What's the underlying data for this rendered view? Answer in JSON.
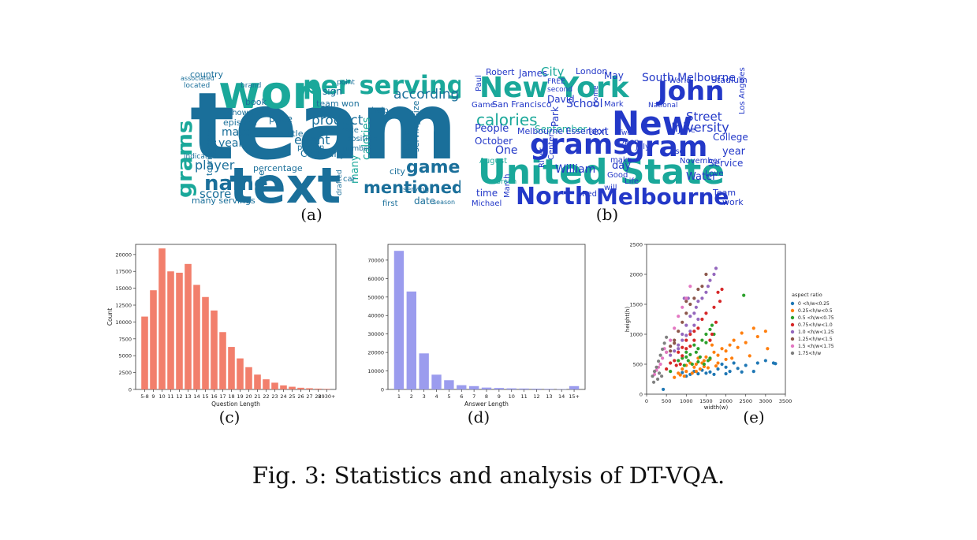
{
  "caption": "Fig. 3: Statistics and analysis of DT-VQA.",
  "sublabels": {
    "a": "(a)",
    "b": "(b)",
    "c": "(c)",
    "d": "(d)",
    "e": "(e)"
  },
  "colors": {
    "cloud_dark": "#1a6f9a",
    "cloud_teal": "#1aa89a",
    "cloud_green": "#2ec08a",
    "cloud_blue": "#2338c8",
    "bar_c": "#f27f6c",
    "bar_d": "#9b9cee"
  },
  "wordcloud_a": {
    "words": [
      "team",
      "text",
      "won",
      "per serving",
      "grams",
      "name",
      "game",
      "mentioned",
      "player",
      "match",
      "year",
      "product",
      "event",
      "score",
      "Company",
      "many",
      "calories",
      "serving size",
      "according",
      "city",
      "percentage",
      "time",
      "type",
      "date",
      "first",
      "price",
      "country",
      "sign",
      "episode",
      "book",
      "title",
      "team won",
      "point",
      "many servings",
      "tournament",
      "located",
      "position",
      "car",
      "season",
      "person",
      "race",
      "number",
      "help",
      "shown",
      "indicated",
      "brand",
      "drafted",
      "serving",
      "result",
      "associated"
    ]
  },
  "wordcloud_b": {
    "words": [
      "New York",
      "John",
      "New",
      "United State",
      "grams",
      "gram",
      "calories",
      "North",
      "Melbourne",
      "University",
      "Street",
      "South Melbourne",
      "People",
      "One",
      "William",
      "October",
      "September",
      "College",
      "year",
      "Service",
      "City",
      "London",
      "May",
      "School",
      "San Francisco",
      "David",
      "text",
      "time",
      "day",
      "Water",
      "Team",
      "work",
      "Robert",
      "James",
      "Stadium",
      "World",
      "Life",
      "Good",
      "Red",
      "Michael",
      "March",
      "August",
      "November",
      "July",
      "June",
      "Park",
      "Melbourne Essendon",
      "make",
      "Open",
      "Mark",
      "Love",
      "will",
      "use",
      "National",
      "Green",
      "second",
      "Center",
      "River",
      "Home",
      "Los Angeles",
      "Paul",
      "Game",
      "FREE",
      "Two"
    ]
  },
  "chart_data": [
    {
      "type": "bar",
      "categories": [
        "5-8",
        "9",
        "10",
        "11",
        "12",
        "13",
        "14",
        "15",
        "16",
        "17",
        "18",
        "19",
        "20",
        "21",
        "22",
        "23",
        "24",
        "25",
        "26",
        "27",
        "28",
        "2930+"
      ],
      "values": [
        10800,
        14700,
        20900,
        17500,
        17300,
        18600,
        15500,
        13700,
        11700,
        8500,
        6300,
        4600,
        3300,
        2200,
        1500,
        1000,
        600,
        400,
        250,
        180,
        120,
        80
      ],
      "xlabel": "Question Length",
      "ylabel": "Count",
      "ylim": [
        0,
        21500
      ],
      "yticks": [
        0,
        2500,
        5000,
        7500,
        10000,
        12500,
        15000,
        17500,
        20000
      ],
      "color": "#f27f6c"
    },
    {
      "type": "bar",
      "categories": [
        "1",
        "2",
        "3",
        "4",
        "5",
        "6",
        "7",
        "8",
        "9",
        "10",
        "11",
        "12",
        "13",
        "14",
        "15+"
      ],
      "values": [
        75000,
        53000,
        19500,
        8000,
        5000,
        2300,
        1800,
        1000,
        800,
        600,
        500,
        400,
        300,
        200,
        1800
      ],
      "xlabel": "Answer Length",
      "ylabel": "",
      "ylim": [
        0,
        78500
      ],
      "yticks": [
        0,
        10000,
        20000,
        30000,
        40000,
        50000,
        60000,
        70000
      ],
      "color": "#9b9cee"
    },
    {
      "type": "scatter",
      "xlabel": "width(w)",
      "ylabel": "height(h)",
      "xlim": [
        0,
        3500
      ],
      "ylim": [
        0,
        2500
      ],
      "xticks": [
        0,
        500,
        1000,
        1500,
        2000,
        2500,
        3000,
        3500
      ],
      "yticks": [
        0,
        500,
        1000,
        1500,
        2000,
        2500
      ],
      "legend_title": "aspect ratio",
      "legend_placement": "right",
      "series": [
        {
          "name": "0   <h/w<0.25",
          "color": "#1f77b4",
          "points": [
            [
              900,
              360
            ],
            [
              1200,
              380
            ],
            [
              1400,
              400
            ],
            [
              1600,
              370
            ],
            [
              1800,
              420
            ],
            [
              2000,
              450
            ],
            [
              2100,
              380
            ],
            [
              2300,
              430
            ],
            [
              2500,
              480
            ],
            [
              2800,
              520
            ],
            [
              3000,
              560
            ],
            [
              3200,
              520
            ],
            [
              3250,
              510
            ],
            [
              2700,
              380
            ],
            [
              2000,
              340
            ],
            [
              1500,
              350
            ],
            [
              1300,
              340
            ],
            [
              1700,
              330
            ],
            [
              2200,
              520
            ],
            [
              1900,
              500
            ],
            [
              2400,
              370
            ],
            [
              1100,
              330
            ],
            [
              1000,
              300
            ],
            [
              420,
              80
            ]
          ]
        },
        {
          "name": "0.25<h/w<0.5",
          "color": "#ff7f0e",
          "points": [
            [
              700,
              280
            ],
            [
              800,
              350
            ],
            [
              900,
              420
            ],
            [
              1000,
              480
            ],
            [
              1100,
              520
            ],
            [
              1200,
              450
            ],
            [
              1300,
              600
            ],
            [
              1400,
              520
            ],
            [
              1500,
              620
            ],
            [
              1600,
              580
            ],
            [
              1700,
              700
            ],
            [
              1800,
              650
            ],
            [
              1900,
              760
            ],
            [
              2000,
              720
            ],
            [
              2100,
              820
            ],
            [
              2200,
              900
            ],
            [
              2300,
              780
            ],
            [
              2400,
              1020
            ],
            [
              2500,
              860
            ],
            [
              2700,
              1100
            ],
            [
              2800,
              960
            ],
            [
              3000,
              1050
            ],
            [
              1650,
              820
            ],
            [
              1450,
              460
            ],
            [
              1350,
              420
            ],
            [
              1250,
              380
            ],
            [
              1150,
              350
            ],
            [
              950,
              300
            ],
            [
              850,
              320
            ],
            [
              1550,
              440
            ],
            [
              1750,
              470
            ],
            [
              2150,
              600
            ],
            [
              2600,
              640
            ],
            [
              3050,
              760
            ],
            [
              1000,
              380
            ],
            [
              1600,
              900
            ],
            [
              2000,
              580
            ],
            [
              1800,
              520
            ],
            [
              1250,
              500
            ],
            [
              1450,
              560
            ]
          ]
        },
        {
          "name": "0.5 <h/w<0.75",
          "color": "#2ca02c",
          "points": [
            [
              600,
              380
            ],
            [
              800,
              560
            ],
            [
              900,
              600
            ],
            [
              1000,
              700
            ],
            [
              1100,
              660
            ],
            [
              1200,
              820
            ],
            [
              1300,
              760
            ],
            [
              1400,
              900
            ],
            [
              1500,
              1000
            ],
            [
              1600,
              1080
            ],
            [
              1650,
              1150
            ],
            [
              1550,
              560
            ],
            [
              1450,
              500
            ],
            [
              1350,
              620
            ],
            [
              1250,
              700
            ],
            [
              1150,
              500
            ],
            [
              1050,
              560
            ],
            [
              950,
              480
            ],
            [
              1700,
              1000
            ],
            [
              1500,
              860
            ],
            [
              2450,
              1650
            ],
            [
              1000,
              620
            ],
            [
              1300,
              540
            ],
            [
              1600,
              600
            ]
          ]
        },
        {
          "name": "0.75<h/w<1.0",
          "color": "#d62728",
          "points": [
            [
              500,
              420
            ],
            [
              700,
              560
            ],
            [
              800,
              700
            ],
            [
              900,
              780
            ],
            [
              1000,
              900
            ],
            [
              1100,
              1000
            ],
            [
              1200,
              1050
            ],
            [
              1300,
              1100
            ],
            [
              1400,
              1250
            ],
            [
              1500,
              1350
            ],
            [
              1700,
              1450
            ],
            [
              1800,
              1700
            ],
            [
              1900,
              1750
            ],
            [
              1850,
              1550
            ],
            [
              1750,
              1200
            ],
            [
              1650,
              1000
            ],
            [
              1600,
              900
            ],
            [
              900,
              640
            ],
            [
              1000,
              760
            ],
            [
              1100,
              800
            ],
            [
              850,
              500
            ],
            [
              750,
              480
            ],
            [
              600,
              520
            ],
            [
              1200,
              900
            ]
          ]
        },
        {
          "name": "1.0  <h/w<1.25",
          "color": "#9467bd",
          "points": [
            [
              600,
              650
            ],
            [
              700,
              720
            ],
            [
              800,
              820
            ],
            [
              900,
              1000
            ],
            [
              1000,
              1150
            ],
            [
              1100,
              1300
            ],
            [
              1200,
              1350
            ],
            [
              1250,
              1450
            ],
            [
              1300,
              1550
            ],
            [
              1400,
              1600
            ],
            [
              1500,
              1700
            ],
            [
              1550,
              1800
            ],
            [
              1600,
              1900
            ],
            [
              1700,
              2000
            ],
            [
              1750,
              2100
            ],
            [
              1300,
              1250
            ],
            [
              1200,
              1150
            ],
            [
              1100,
              1050
            ],
            [
              1000,
              980
            ],
            [
              900,
              900
            ],
            [
              800,
              760
            ],
            [
              1050,
              1600
            ],
            [
              950,
              1600
            ]
          ]
        },
        {
          "name": "1.25<h/w<1.5",
          "color": "#8c564b",
          "points": [
            [
              500,
              700
            ],
            [
              600,
              800
            ],
            [
              700,
              900
            ],
            [
              800,
              1050
            ],
            [
              900,
              1200
            ],
            [
              1000,
              1350
            ],
            [
              1100,
              1500
            ],
            [
              1200,
              1600
            ],
            [
              1300,
              1750
            ],
            [
              1400,
              1800
            ],
            [
              1500,
              2000
            ],
            [
              1000,
              1550
            ],
            [
              700,
              850
            ],
            [
              600,
              720
            ]
          ]
        },
        {
          "name": "1.5  <h/w<1.75",
          "color": "#e377c2",
          "points": [
            [
              200,
              330
            ],
            [
              300,
              450
            ],
            [
              400,
              600
            ],
            [
              500,
              700
            ],
            [
              600,
              900
            ],
            [
              700,
              1100
            ],
            [
              800,
              1300
            ],
            [
              900,
              1450
            ],
            [
              1000,
              1600
            ],
            [
              1100,
              1800
            ],
            [
              250,
              400
            ],
            [
              350,
              500
            ],
            [
              450,
              760
            ]
          ]
        },
        {
          "name": "1.75<h/w",
          "color": "#7f7f7f",
          "points": [
            [
              150,
              300
            ],
            [
              200,
              380
            ],
            [
              250,
              450
            ],
            [
              300,
              550
            ],
            [
              350,
              650
            ],
            [
              400,
              750
            ],
            [
              450,
              850
            ],
            [
              500,
              950
            ],
            [
              180,
              200
            ],
            [
              280,
              250
            ],
            [
              380,
              300
            ],
            [
              320,
              350
            ]
          ]
        }
      ]
    }
  ]
}
